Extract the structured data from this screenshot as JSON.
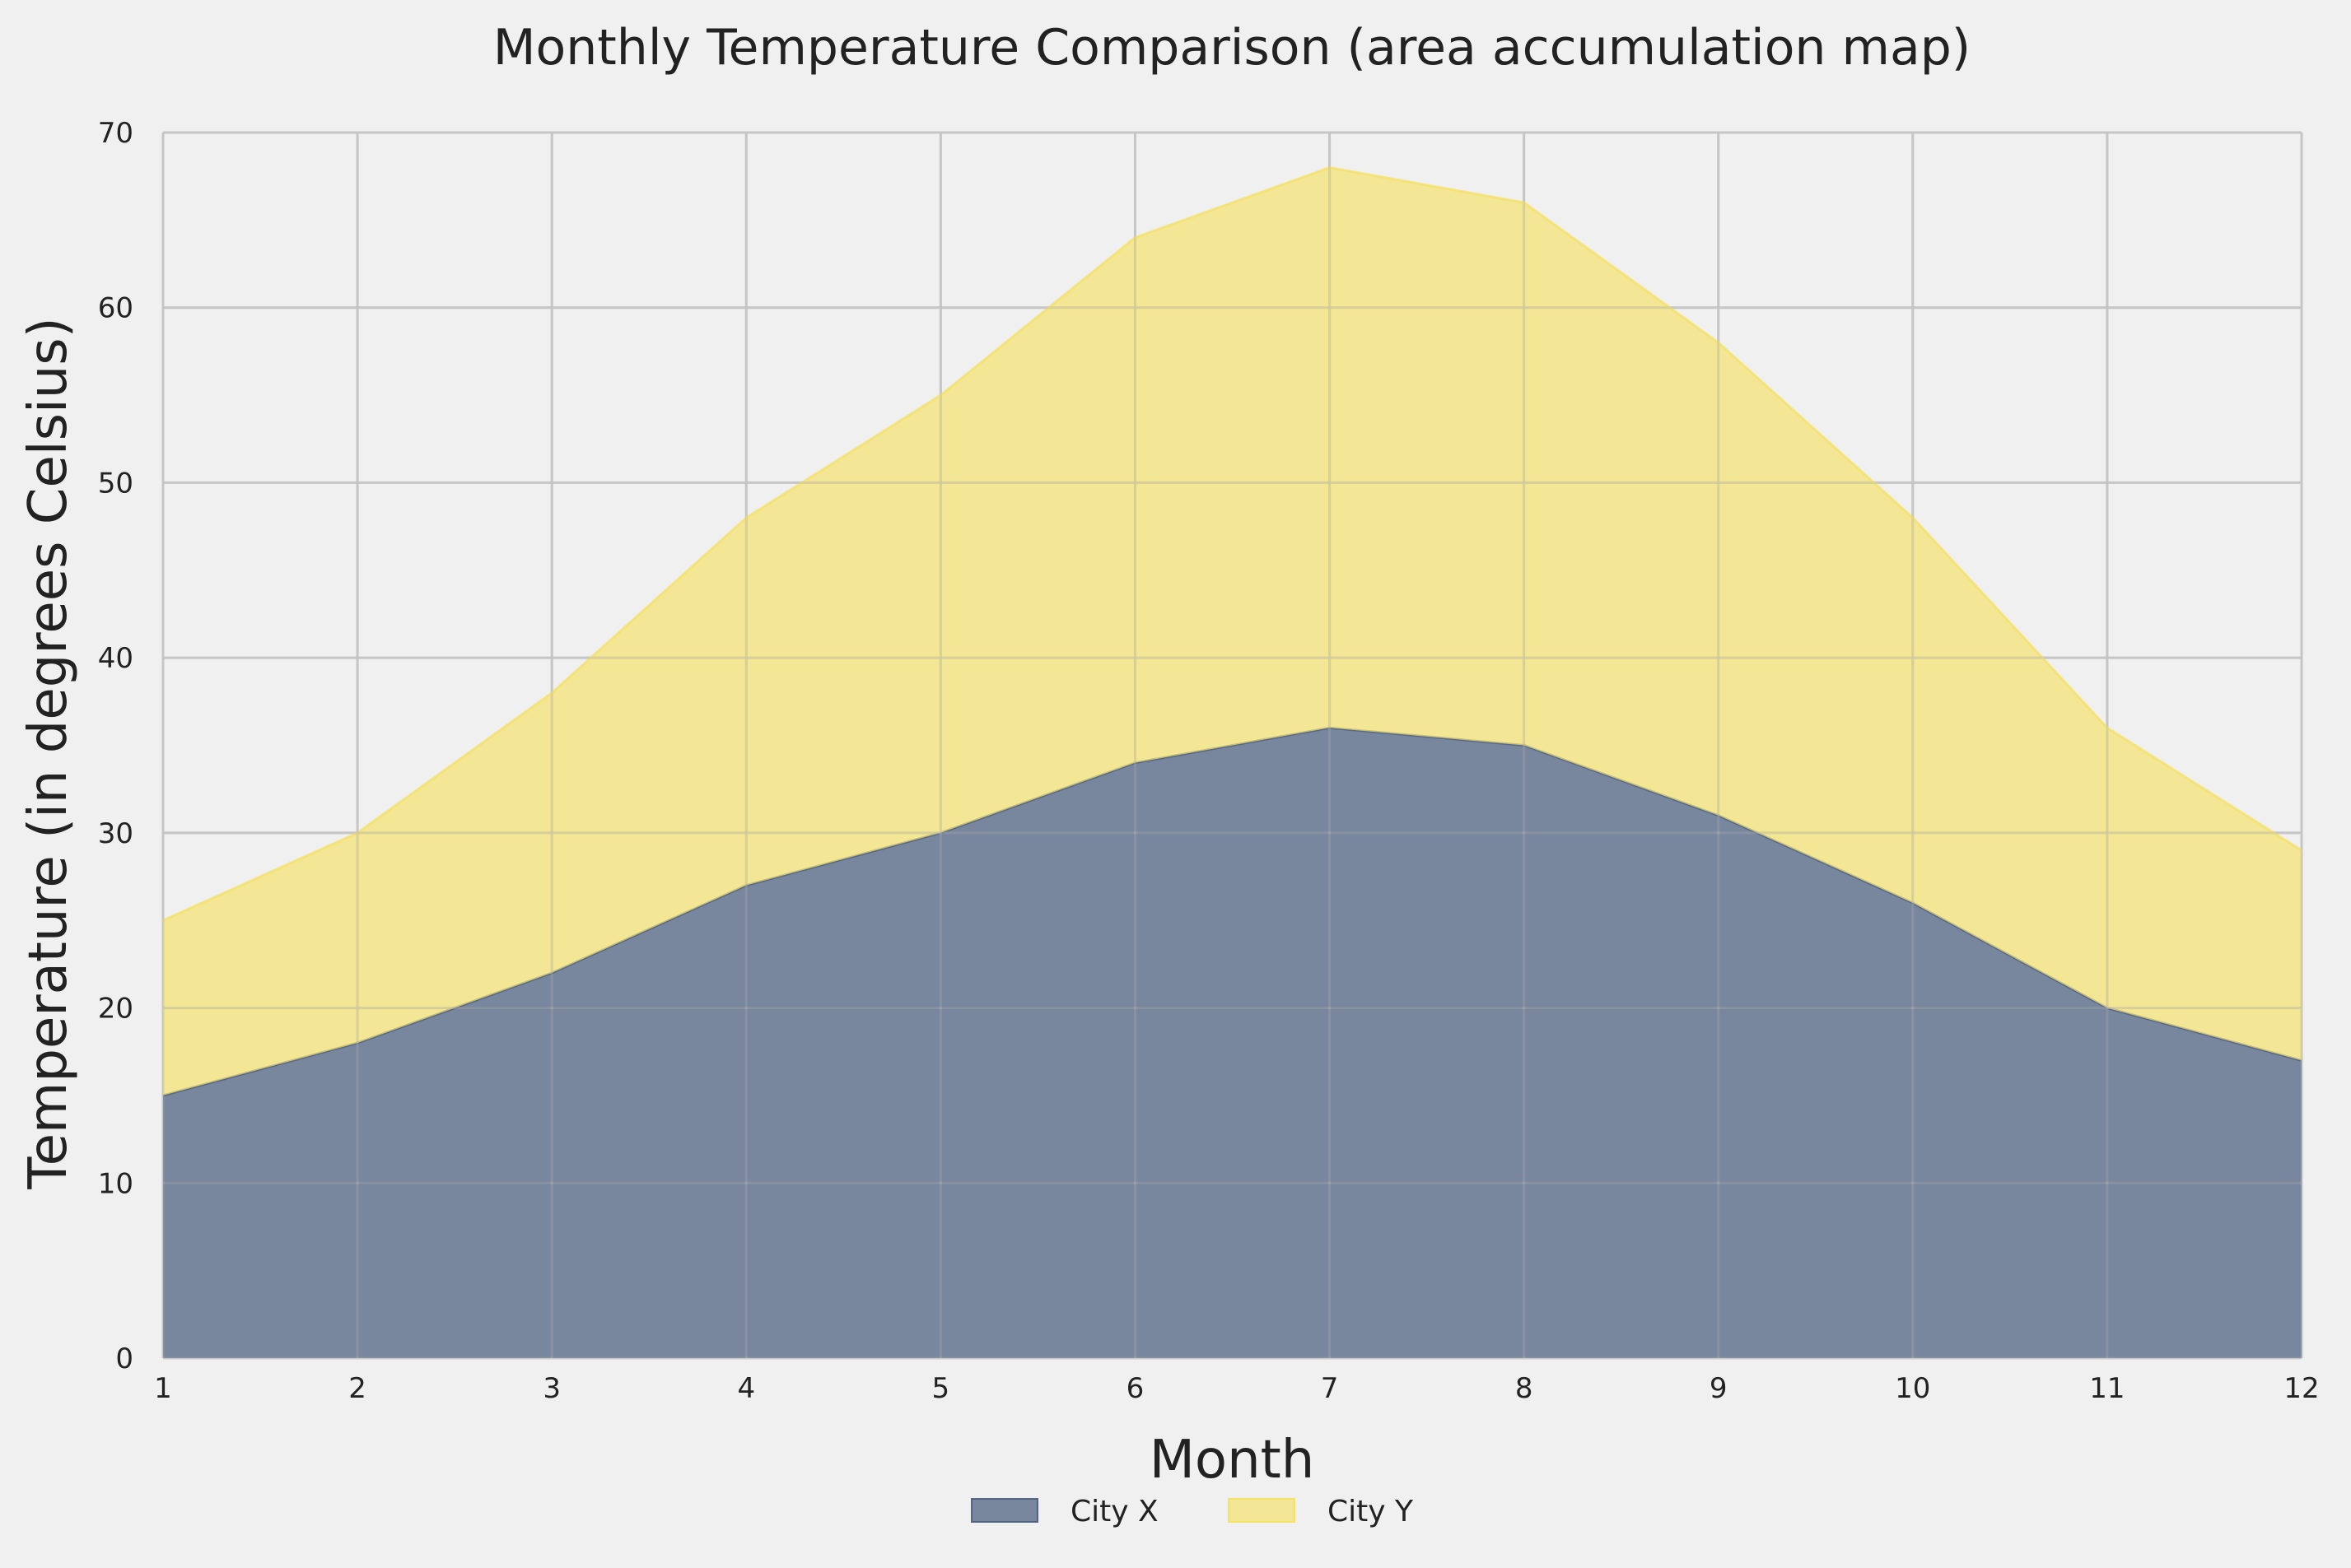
{
  "chart_data": {
    "type": "area",
    "stacked": true,
    "title": "Monthly Temperature Comparison (area accumulation map)",
    "xlabel": "Month",
    "ylabel": "Temperature (in degrees Celsius)",
    "x": [
      1,
      2,
      3,
      4,
      5,
      6,
      7,
      8,
      9,
      10,
      11,
      12
    ],
    "xlim": [
      1,
      12
    ],
    "ylim": [
      0,
      70
    ],
    "xticks": [
      "1",
      "2",
      "3",
      "4",
      "5",
      "6",
      "7",
      "8",
      "9",
      "10",
      "11",
      "12"
    ],
    "yticks": [
      "0",
      "10",
      "20",
      "30",
      "40",
      "50",
      "60",
      "70"
    ],
    "grid": true,
    "legend_position": "bottom-center",
    "series": [
      {
        "name": "City X",
        "values": [
          15,
          18,
          22,
          27,
          30,
          34,
          36,
          35,
          31,
          26,
          20,
          17
        ],
        "color": "#4a5d7e"
      },
      {
        "name": "City Y",
        "values": [
          10,
          12,
          16,
          21,
          25,
          30,
          32,
          31,
          27,
          22,
          16,
          12
        ],
        "color": "#f5e05e"
      }
    ]
  }
}
